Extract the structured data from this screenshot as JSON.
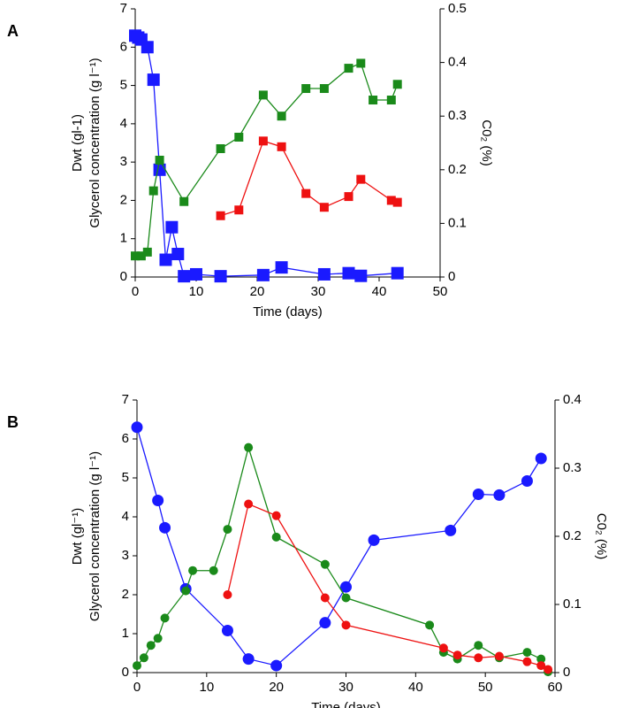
{
  "chart_data": [
    {
      "type": "line",
      "panel_label": "A",
      "xlabel": "Time (days)",
      "ylabel": [
        "Dwt (gl-1)",
        "Glycerol concentration (g l⁻¹)"
      ],
      "y2label": "C0₂ (%)",
      "xlim": [
        0,
        50
      ],
      "xticks": [
        0,
        10,
        20,
        30,
        40,
        50
      ],
      "ylim": [
        0,
        7
      ],
      "yticks": [
        0,
        1,
        2,
        3,
        4,
        5,
        6,
        7
      ],
      "y2lim": [
        0,
        0.5
      ],
      "y2ticks": [
        0,
        0.1,
        0.2,
        0.3,
        0.4,
        0.5
      ],
      "series": [
        {
          "color": "#1a1aff",
          "marker": "large-square",
          "x": [
            0,
            0.5,
            1,
            2,
            3,
            4,
            5,
            6,
            7,
            8,
            10,
            14,
            21,
            24,
            31,
            35,
            37,
            43
          ],
          "values": [
            6.3,
            6.25,
            6.2,
            6.0,
            5.15,
            2.8,
            0.45,
            1.3,
            0.6,
            0.02,
            0.07,
            0.02,
            0.05,
            0.25,
            0.07,
            0.1,
            0.03,
            0.1
          ]
        },
        {
          "color": "#1a8a1a",
          "marker": "square",
          "x": [
            0,
            1,
            2,
            3,
            4,
            8,
            14,
            17,
            21,
            24,
            28,
            31,
            35,
            37,
            39,
            42,
            43
          ],
          "values": [
            0.55,
            0.55,
            0.65,
            2.25,
            3.05,
            1.97,
            3.35,
            3.65,
            4.75,
            4.2,
            4.92,
            4.92,
            5.45,
            5.58,
            4.62,
            4.62,
            5.03
          ]
        },
        {
          "color": "#ee1111",
          "marker": "square",
          "x": [
            14,
            17,
            21,
            24,
            28,
            31,
            35,
            37,
            42,
            43
          ],
          "values": [
            1.6,
            1.75,
            3.55,
            3.4,
            2.18,
            1.82,
            2.1,
            2.55,
            2.0,
            1.95
          ]
        }
      ]
    },
    {
      "type": "line",
      "panel_label": "B",
      "xlabel": "Time (days)",
      "ylabel": [
        "Dwt (gl⁻¹)",
        "Glycerol concentration (g l⁻¹)"
      ],
      "y2label": "C0₂ (%)",
      "xlim": [
        0,
        60
      ],
      "xticks": [
        0,
        10,
        20,
        30,
        40,
        50,
        60
      ],
      "ylim": [
        0,
        7
      ],
      "yticks": [
        0,
        1,
        2,
        3,
        4,
        5,
        6,
        7
      ],
      "y2lim": [
        0,
        0.4
      ],
      "y2ticks": [
        0,
        0.1,
        0.2,
        0.3,
        0.4
      ],
      "series": [
        {
          "color": "#1a1aff",
          "marker": "large-circle",
          "x": [
            0,
            3,
            4,
            7,
            13,
            16,
            20,
            27,
            30,
            34,
            45,
            49,
            52,
            56,
            58
          ],
          "values": [
            6.3,
            4.42,
            3.72,
            2.15,
            1.08,
            0.35,
            0.18,
            1.28,
            2.2,
            3.4,
            3.65,
            4.58,
            4.56,
            4.92,
            5.5
          ]
        },
        {
          "color": "#1a8a1a",
          "marker": "circle",
          "x": [
            0,
            1,
            2,
            3,
            4,
            7,
            8,
            11,
            13,
            16,
            20,
            27,
            30,
            42,
            44,
            46,
            49,
            52,
            56,
            58,
            59
          ],
          "values": [
            0.18,
            0.38,
            0.7,
            0.88,
            1.4,
            2.1,
            2.62,
            2.62,
            3.68,
            5.78,
            3.48,
            2.78,
            1.92,
            1.22,
            0.52,
            0.35,
            0.7,
            0.38,
            0.52,
            0.35,
            0.02
          ]
        },
        {
          "color": "#ee1111",
          "marker": "circle",
          "x": [
            13,
            16,
            20,
            27,
            30,
            44,
            46,
            49,
            52,
            56,
            58,
            59
          ],
          "values": [
            2.0,
            4.33,
            4.03,
            1.92,
            1.22,
            0.63,
            0.45,
            0.38,
            0.42,
            0.28,
            0.18,
            0.08
          ]
        }
      ]
    }
  ]
}
